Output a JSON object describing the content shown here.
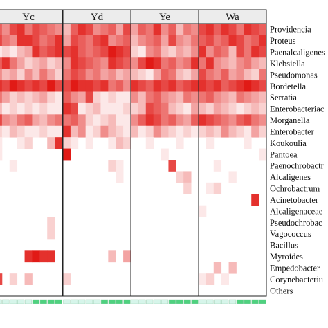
{
  "chart_data": {
    "type": "heatmap",
    "title": "",
    "xlabel": "",
    "ylabel": "",
    "groups": [
      "Yc",
      "Yd",
      "Ye",
      "Wa"
    ],
    "columns_per_group": 9,
    "rows": [
      "Providencia",
      "Proteus",
      "Paenalcaligenes",
      "Klebsiella",
      "Pseudomonas",
      "Bordetella",
      "Serratia",
      "Enterobacteriaceae",
      "Morganella",
      "Enterobacter",
      "Koukoulia",
      "Pantoea",
      "Paenochrobactrum",
      "Alcaligenes",
      "Ochrobactrum",
      "Acinetobacter",
      "Alcaligenaceae",
      "Pseudochrobactrum",
      "Vagococcus",
      "Bacillus",
      "Myroides",
      "Empedobacter",
      "Corynebacterium",
      "Others"
    ],
    "row_labels_visible": [
      "Providencia",
      "Proteus",
      "Paenalcaligenes",
      "Klebsiella",
      "Pseudomonas",
      "Bordetella",
      "Serratia",
      "Enterobacteriac",
      "Morganella",
      "Enterobacter",
      "Koukoulia",
      "Pantoea",
      "Paenochrobactr",
      "Alcaligenes",
      "Ochrobactrum",
      "Acinetobacter",
      "Alcaligenaceae",
      "Pseudochrobac",
      "Vagococcus",
      "Bacillus",
      "Myroides",
      "Empedobacter",
      "Corynebacteriu",
      "Others"
    ],
    "values": [
      [
        0.7,
        0.5,
        0.8,
        0.9,
        0.6,
        0.8,
        0.7,
        0.6,
        0.5,
        0.3,
        0.7,
        0.9,
        0.8,
        0.5,
        0.6,
        0.7,
        0.4,
        0.8,
        0.4,
        0.7,
        0.6,
        0.9,
        0.5,
        0.7,
        0.3,
        0.6,
        0.5,
        0.8,
        0.9,
        0.7,
        0.9,
        0.8,
        0.6,
        0.9,
        0.8,
        0.7
      ],
      [
        0.8,
        0.6,
        0.5,
        0.9,
        0.9,
        0.8,
        0.6,
        0.7,
        0.9,
        0.4,
        0.8,
        0.7,
        0.6,
        0.8,
        0.9,
        0.5,
        0.6,
        0.7,
        0.3,
        0.5,
        0.6,
        0.7,
        0.4,
        0.8,
        0.5,
        0.4,
        0.6,
        0.7,
        0.8,
        0.6,
        0.7,
        0.9,
        0.8,
        0.6,
        0.7,
        0.9
      ],
      [
        0.1,
        0.2,
        0.1,
        0.3,
        0.4,
        0.9,
        0.7,
        0.8,
        0.9,
        0.8,
        0.9,
        0.7,
        0.6,
        0.7,
        0.8,
        1.0,
        0.9,
        0.8,
        0.2,
        0.1,
        0.5,
        0.6,
        0.3,
        0.2,
        0.4,
        0.3,
        0.5,
        0.9,
        0.5,
        0.7,
        0.6,
        0.3,
        0.8,
        0.6,
        0.9,
        0.8
      ],
      [
        0.7,
        0.9,
        0.6,
        0.4,
        0.2,
        0.3,
        0.4,
        0.2,
        0.3,
        0.5,
        0.9,
        0.8,
        0.7,
        0.6,
        0.5,
        0.9,
        0.8,
        0.7,
        0.5,
        0.8,
        1.0,
        0.9,
        0.6,
        0.7,
        0.5,
        0.6,
        0.9,
        0.6,
        0.9,
        0.5,
        0.4,
        0.3,
        0.5,
        0.6,
        0.4,
        0.3
      ],
      [
        0.5,
        0.3,
        0.4,
        0.2,
        0.5,
        0.3,
        0.6,
        0.4,
        0.2,
        0.6,
        0.8,
        0.7,
        0.5,
        0.6,
        0.4,
        0.5,
        0.3,
        0.4,
        0.3,
        0.2,
        0.1,
        0.4,
        0.7,
        0.6,
        0.3,
        0.2,
        0.4,
        0.8,
        0.6,
        0.5,
        0.7,
        0.4,
        0.5,
        0.3,
        0.2,
        0.6
      ],
      [
        0.9,
        0.8,
        1.0,
        0.9,
        0.8,
        0.9,
        0.8,
        1.0,
        0.8,
        0.8,
        1.0,
        0.9,
        0.9,
        0.8,
        0.9,
        0.6,
        0.7,
        0.5,
        0.9,
        0.8,
        0.7,
        0.9,
        0.8,
        0.9,
        0.7,
        0.8,
        0.9,
        0.9,
        0.8,
        0.9,
        0.7,
        0.8,
        0.9,
        1.0,
        0.9,
        0.8
      ],
      [
        0.6,
        0.4,
        0.2,
        0.3,
        0.2,
        0.3,
        0.4,
        0.2,
        0.1,
        0.7,
        0.5,
        0.4,
        0.8,
        0.2,
        0.1,
        0.2,
        0.1,
        0.1,
        0.5,
        0.3,
        0.6,
        0.7,
        0.5,
        0.4,
        0.3,
        0.6,
        0.5,
        0.6,
        0.7,
        0.5,
        0.4,
        0.3,
        0.6,
        0.5,
        0.4,
        0.3
      ],
      [
        0.3,
        0.1,
        0.2,
        0.1,
        0.2,
        0.1,
        0.2,
        0.1,
        0.1,
        0.9,
        0.8,
        0.1,
        0.2,
        0.3,
        0.1,
        0.1,
        0.1,
        0.2,
        0.2,
        0.3,
        0.8,
        0.7,
        0.6,
        0.3,
        0.2,
        0.1,
        0.4,
        0.3,
        0.2,
        0.4,
        0.3,
        0.2,
        0.1,
        0.2,
        0.3,
        0.2
      ],
      [
        0.8,
        0.5,
        0.4,
        0.6,
        0.7,
        0.4,
        0.3,
        0.5,
        0.6,
        0.6,
        0.7,
        0.5,
        0.2,
        0.1,
        0.2,
        0.3,
        0.1,
        0.1,
        0.5,
        0.7,
        0.9,
        0.8,
        0.6,
        0.7,
        0.5,
        0.4,
        0.7,
        0.9,
        0.8,
        0.7,
        0.6,
        0.5,
        0.7,
        0.8,
        0.6,
        0.5
      ],
      [
        0.2,
        0.1,
        0.3,
        0.2,
        0.1,
        0.1,
        0.2,
        0.1,
        0.1,
        0.9,
        0.3,
        0.5,
        0.1,
        0.2,
        0.5,
        0.3,
        0.2,
        0.1,
        0.3,
        0.1,
        0.2,
        0.5,
        0.3,
        0.2,
        0.1,
        0.2,
        0.1,
        0.2,
        0.3,
        0.2,
        0.5,
        0.3,
        0.2,
        0.1,
        0.4,
        0.2
      ],
      [
        0.1,
        0.0,
        0.0,
        0.1,
        0.2,
        0.0,
        0.0,
        0.3,
        0.9,
        0.2,
        0.1,
        0.0,
        0.1,
        0.0,
        0.0,
        0.1,
        0.3,
        0.2,
        0.0,
        0.0,
        0.1,
        0.0,
        0.0,
        0.0,
        0.1,
        0.0,
        0.0,
        0.0,
        0.1,
        0.0,
        0.0,
        0.0,
        0.0,
        0.1,
        0.0,
        0.0
      ],
      [
        0.1,
        0.0,
        0.0,
        0.0,
        0.0,
        0.0,
        0.0,
        0.0,
        0.0,
        1.0,
        0.0,
        0.0,
        0.0,
        0.0,
        0.0,
        0.0,
        0.0,
        0.0,
        0.0,
        0.0,
        0.0,
        0.0,
        0.1,
        0.0,
        0.0,
        0.0,
        0.0,
        0.0,
        0.0,
        0.0,
        0.0,
        0.0,
        0.0,
        0.0,
        0.0,
        0.1
      ],
      [
        0.0,
        0.0,
        0.1,
        0.0,
        0.0,
        0.0,
        0.0,
        0.0,
        0.0,
        0.0,
        0.0,
        0.0,
        0.0,
        0.0,
        0.0,
        0.2,
        0.1,
        0.0,
        0.0,
        0.0,
        0.0,
        0.0,
        0.0,
        0.8,
        0.0,
        0.0,
        0.0,
        0.0,
        0.0,
        0.1,
        0.0,
        0.0,
        0.0,
        0.0,
        0.0,
        0.0
      ],
      [
        0.0,
        0.0,
        0.0,
        0.0,
        0.0,
        0.0,
        0.0,
        0.0,
        0.0,
        0.0,
        0.0,
        0.0,
        0.0,
        0.0,
        0.0,
        0.0,
        0.1,
        0.0,
        0.0,
        0.0,
        0.0,
        0.0,
        0.0,
        0.0,
        0.2,
        0.3,
        0.0,
        0.0,
        0.0,
        0.0,
        0.0,
        0.1,
        0.0,
        0.0,
        0.0,
        0.0
      ],
      [
        0.0,
        0.0,
        0.0,
        0.0,
        0.0,
        0.0,
        0.0,
        0.0,
        0.0,
        0.0,
        0.0,
        0.0,
        0.0,
        0.0,
        0.0,
        0.0,
        0.0,
        0.0,
        0.0,
        0.0,
        0.0,
        0.0,
        0.0,
        0.0,
        0.0,
        0.2,
        0.0,
        0.0,
        0.1,
        0.2,
        0.0,
        0.0,
        0.0,
        0.0,
        0.0,
        0.0
      ],
      [
        0.0,
        0.0,
        0.0,
        0.0,
        0.0,
        0.0,
        0.0,
        0.0,
        0.0,
        0.0,
        0.0,
        0.0,
        0.0,
        0.0,
        0.0,
        0.0,
        0.0,
        0.0,
        0.0,
        0.0,
        0.0,
        0.0,
        0.0,
        0.0,
        0.0,
        0.0,
        0.0,
        0.0,
        0.0,
        0.0,
        0.0,
        0.0,
        0.0,
        0.0,
        0.9,
        0.0
      ],
      [
        0.0,
        0.0,
        0.0,
        0.0,
        0.0,
        0.0,
        0.0,
        0.0,
        0.0,
        0.0,
        0.0,
        0.0,
        0.0,
        0.0,
        0.0,
        0.0,
        0.0,
        0.0,
        0.0,
        0.0,
        0.0,
        0.0,
        0.0,
        0.0,
        0.0,
        0.0,
        0.0,
        0.1,
        0.0,
        0.0,
        0.0,
        0.0,
        0.0,
        0.0,
        0.0,
        0.0
      ],
      [
        0.0,
        0.0,
        0.0,
        0.0,
        0.0,
        0.0,
        0.0,
        0.2,
        0.0,
        0.0,
        0.0,
        0.0,
        0.0,
        0.0,
        0.0,
        0.0,
        0.0,
        0.0,
        0.0,
        0.0,
        0.0,
        0.0,
        0.0,
        0.0,
        0.0,
        0.0,
        0.0,
        0.0,
        0.0,
        0.0,
        0.0,
        0.0,
        0.0,
        0.0,
        0.0,
        0.0
      ],
      [
        0.0,
        0.0,
        0.0,
        0.0,
        0.0,
        0.0,
        0.0,
        0.2,
        0.0,
        0.0,
        0.0,
        0.0,
        0.0,
        0.0,
        0.0,
        0.0,
        0.0,
        0.0,
        0.0,
        0.0,
        0.0,
        0.0,
        0.0,
        0.0,
        0.0,
        0.0,
        0.0,
        0.0,
        0.0,
        0.0,
        0.0,
        0.0,
        0.0,
        0.0,
        0.0,
        0.0
      ],
      [
        0.0,
        0.0,
        0.0,
        0.0,
        0.0,
        0.0,
        0.0,
        0.0,
        0.0,
        0.0,
        0.0,
        0.0,
        0.0,
        0.0,
        0.0,
        0.0,
        0.0,
        0.0,
        0.0,
        0.0,
        0.0,
        0.0,
        0.0,
        0.0,
        0.0,
        0.0,
        0.0,
        0.0,
        0.0,
        0.0,
        0.0,
        0.0,
        0.0,
        0.0,
        0.0,
        0.0
      ],
      [
        0.0,
        0.0,
        0.0,
        0.0,
        0.9,
        1.0,
        0.9,
        0.9,
        0.0,
        0.0,
        0.0,
        0.0,
        0.0,
        0.0,
        0.0,
        0.3,
        0.0,
        0.4,
        0.0,
        0.0,
        0.0,
        0.0,
        0.0,
        0.0,
        0.0,
        0.0,
        0.0,
        0.0,
        0.0,
        0.0,
        0.0,
        0.0,
        0.0,
        0.0,
        0.0,
        0.0
      ],
      [
        0.0,
        0.0,
        0.0,
        0.0,
        0.0,
        0.0,
        0.0,
        0.0,
        0.0,
        0.0,
        0.0,
        0.0,
        0.0,
        0.0,
        0.0,
        0.0,
        0.0,
        0.0,
        0.0,
        0.0,
        0.0,
        0.0,
        0.0,
        0.0,
        0.0,
        0.0,
        0.0,
        0.0,
        0.0,
        0.3,
        0.0,
        0.3,
        0.0,
        0.0,
        0.0,
        0.0
      ],
      [
        0.8,
        0.0,
        0.2,
        0.0,
        0.3,
        0.0,
        0.0,
        0.0,
        0.0,
        0.2,
        0.0,
        0.0,
        0.0,
        0.0,
        0.0,
        0.0,
        0.0,
        0.0,
        0.0,
        0.0,
        0.0,
        0.0,
        0.0,
        0.0,
        0.0,
        0.0,
        0.0,
        0.1,
        0.2,
        0.0,
        0.1,
        0.0,
        0.0,
        0.0,
        0.0,
        0.0
      ],
      [
        0.0,
        0.0,
        0.0,
        0.0,
        0.0,
        0.0,
        0.0,
        0.0,
        0.0,
        0.0,
        0.0,
        0.0,
        0.0,
        0.0,
        0.0,
        0.0,
        0.0,
        0.0,
        0.0,
        0.0,
        0.0,
        0.0,
        0.0,
        0.0,
        0.0,
        0.0,
        0.0,
        0.0,
        0.0,
        0.0,
        0.0,
        0.0,
        0.0,
        0.0,
        0.0,
        0.0
      ]
    ],
    "color_low": "#ffffff",
    "color_high": "#e11a16",
    "sample_bar_colors": [
      "#d6f5ea",
      "#4fd17f"
    ],
    "grid": false,
    "legend": "none"
  }
}
